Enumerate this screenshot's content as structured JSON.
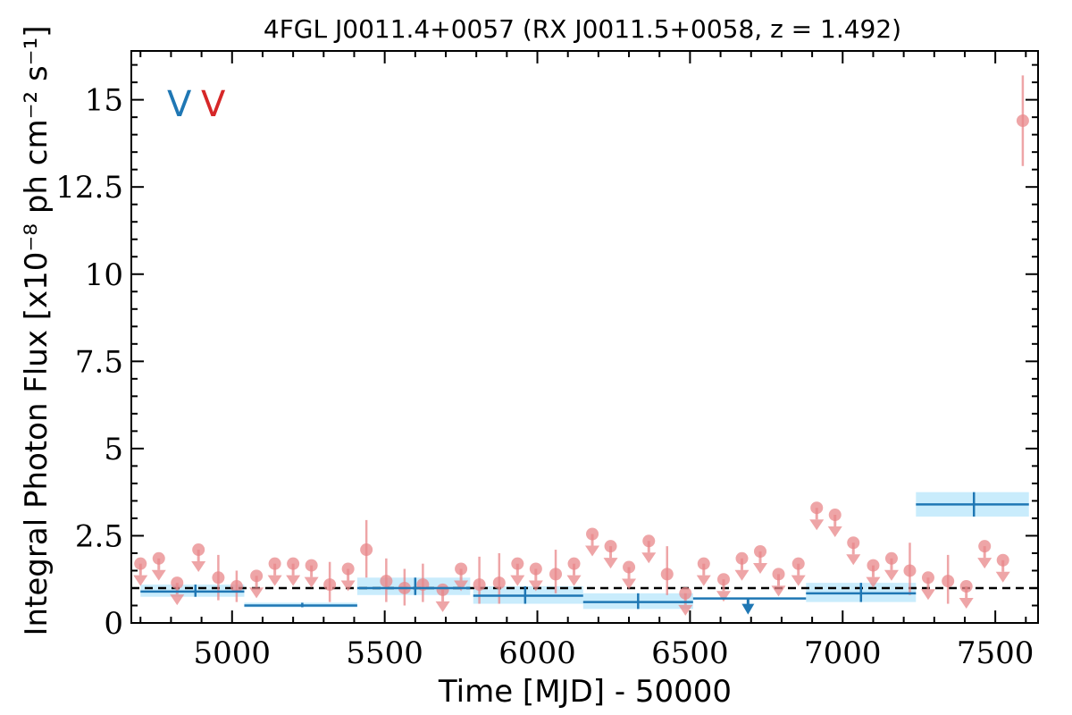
{
  "chart_data": {
    "type": "scatter",
    "title": "4FGL J0011.4+0057 (RX J0011.5+0058, z = 1.492)",
    "xlabel": "Time [MJD] - 50000",
    "ylabel": "Integral Photon Flux [x10⁻⁸ ph cm⁻² s⁻¹]",
    "xlim": [
      4670,
      7640
    ],
    "ylim": [
      0,
      16.4
    ],
    "x_ticks": [
      5000,
      5500,
      6000,
      6500,
      7000,
      7500
    ],
    "x_tick_labels": [
      "5000",
      "5500",
      "6000",
      "6500",
      "7000",
      "7500"
    ],
    "y_ticks": [
      0,
      2.5,
      5,
      7.5,
      10,
      12.5,
      15
    ],
    "y_tick_labels": [
      "0",
      "2.5",
      "5",
      "7.5",
      "10",
      "12.5",
      "15"
    ],
    "grid": false,
    "reference_line": {
      "y": 1.0,
      "style": "dashed",
      "color": "#000000"
    },
    "markers": [
      {
        "text": "V",
        "color": "#1f77b4"
      },
      {
        "text": "V",
        "color": "#d62728"
      }
    ],
    "colors": {
      "long_bins": "#1f77b4",
      "long_band": "#bfe9fb",
      "short_bins": "#e8878a"
    },
    "series": [
      {
        "style": "long-bins",
        "points": [
          {
            "x0": 4700,
            "x1": 5040,
            "xc": 4880,
            "y": 0.9,
            "band": [
              0.75,
              1.1
            ]
          },
          {
            "x0": 5040,
            "x1": 5410,
            "xc": 5230,
            "y": 0.5,
            "band": [
              0.45,
              0.58
            ]
          },
          {
            "x0": 5410,
            "x1": 5780,
            "xc": 5600,
            "y": 1.0,
            "band": [
              0.8,
              1.3
            ]
          },
          {
            "x0": 5790,
            "x1": 6150,
            "xc": 5960,
            "y": 0.78,
            "band": [
              0.55,
              1.05
            ]
          },
          {
            "x0": 6150,
            "x1": 6510,
            "xc": 6330,
            "y": 0.6,
            "band": [
              0.4,
              0.85
            ]
          },
          {
            "x0": 6510,
            "x1": 6880,
            "xc": 6690,
            "y": 0.7,
            "upper_limit": true
          },
          {
            "x0": 6880,
            "x1": 7240,
            "xc": 7060,
            "y": 0.85,
            "band": [
              0.6,
              1.15
            ]
          },
          {
            "x0": 7240,
            "x1": 7610,
            "xc": 7430,
            "y": 3.4,
            "band": [
              3.05,
              3.75
            ]
          }
        ]
      },
      {
        "style": "short-bins",
        "points": [
          {
            "x": 4700,
            "y": 1.7,
            "ul": true
          },
          {
            "x": 4760,
            "y": 1.85,
            "ul": true
          },
          {
            "x": 4820,
            "y": 1.15,
            "ul": true
          },
          {
            "x": 4890,
            "y": 2.1,
            "ul": true
          },
          {
            "x": 4955,
            "y": 1.3,
            "err": [
              0.65,
              1.95
            ]
          },
          {
            "x": 5015,
            "y": 1.05,
            "err": [
              0.6,
              1.5
            ]
          },
          {
            "x": 5080,
            "y": 1.35,
            "ul": true
          },
          {
            "x": 5140,
            "y": 1.7,
            "ul": true
          },
          {
            "x": 5200,
            "y": 1.7,
            "ul": true
          },
          {
            "x": 5260,
            "y": 1.65,
            "ul": true
          },
          {
            "x": 5320,
            "y": 1.1,
            "err": [
              0.6,
              1.75
            ]
          },
          {
            "x": 5380,
            "y": 1.55,
            "ul": true
          },
          {
            "x": 5440,
            "y": 2.1,
            "err": [
              1.3,
              2.95
            ]
          },
          {
            "x": 5505,
            "y": 1.2,
            "err": [
              0.6,
              1.85
            ]
          },
          {
            "x": 5565,
            "y": 1.0,
            "err": [
              0.5,
              1.55
            ]
          },
          {
            "x": 5625,
            "y": 1.1,
            "err": [
              0.6,
              1.7
            ]
          },
          {
            "x": 5690,
            "y": 0.95,
            "ul": true
          },
          {
            "x": 5750,
            "y": 1.55,
            "ul": true
          },
          {
            "x": 5810,
            "y": 1.1,
            "err": [
              0.55,
              1.9
            ]
          },
          {
            "x": 5875,
            "y": 1.15,
            "err": [
              0.55,
              2.0
            ]
          },
          {
            "x": 5935,
            "y": 1.7,
            "ul": true
          },
          {
            "x": 5995,
            "y": 1.55,
            "ul": true
          },
          {
            "x": 6060,
            "y": 1.4,
            "err": [
              0.85,
              2.1
            ]
          },
          {
            "x": 6120,
            "y": 1.7,
            "ul": true
          },
          {
            "x": 6180,
            "y": 2.55,
            "ul": true
          },
          {
            "x": 6240,
            "y": 2.2,
            "ul": true
          },
          {
            "x": 6300,
            "y": 1.6,
            "ul": true
          },
          {
            "x": 6365,
            "y": 2.35,
            "ul": true
          },
          {
            "x": 6425,
            "y": 1.4,
            "err": [
              0.8,
              2.2
            ]
          },
          {
            "x": 6485,
            "y": 0.85,
            "ul": true
          },
          {
            "x": 6545,
            "y": 1.7,
            "ul": true
          },
          {
            "x": 6610,
            "y": 1.25,
            "ul": true
          },
          {
            "x": 6670,
            "y": 1.85,
            "ul": true
          },
          {
            "x": 6730,
            "y": 2.05,
            "ul": true
          },
          {
            "x": 6790,
            "y": 1.4,
            "ul": true
          },
          {
            "x": 6855,
            "y": 1.7,
            "ul": true
          },
          {
            "x": 6915,
            "y": 3.3,
            "ul": true
          },
          {
            "x": 6975,
            "y": 3.1,
            "ul": true
          },
          {
            "x": 7035,
            "y": 2.3,
            "ul": true
          },
          {
            "x": 7100,
            "y": 1.65,
            "ul": true
          },
          {
            "x": 7160,
            "y": 1.85,
            "ul": true
          },
          {
            "x": 7220,
            "y": 1.5,
            "err": [
              0.8,
              2.3
            ]
          },
          {
            "x": 7280,
            "y": 1.3,
            "ul": true
          },
          {
            "x": 7345,
            "y": 1.2,
            "err": [
              0.55,
              1.95
            ]
          },
          {
            "x": 7405,
            "y": 1.05,
            "ul": true
          },
          {
            "x": 7465,
            "y": 2.2,
            "ul": true
          },
          {
            "x": 7525,
            "y": 1.8,
            "ul": true
          },
          {
            "x": 7590,
            "y": 14.4,
            "err": [
              13.1,
              15.7
            ]
          }
        ]
      }
    ]
  }
}
